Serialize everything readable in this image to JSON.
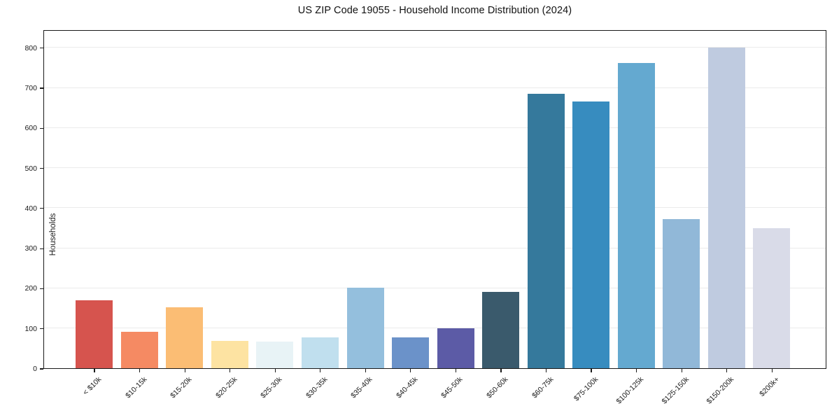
{
  "title": "US ZIP Code 19055 - Household Income Distribution (2024)",
  "chart_data": {
    "type": "bar",
    "title": "US ZIP Code 19055 - Household Income Distribution (2024)",
    "xlabel": "",
    "ylabel": "Households",
    "categories": [
      "< $10k",
      "$10-15k",
      "$15-20k",
      "$20-25k",
      "$25-30k",
      "$30-35k",
      "$35-40k",
      "$40-45k",
      "$45-50k",
      "$50-60k",
      "$60-75k",
      "$75-100k",
      "$100-125k",
      "$125-150k",
      "$150-200k",
      "$200k+"
    ],
    "values": [
      170,
      91,
      152,
      68,
      66,
      77,
      200,
      77,
      100,
      190,
      685,
      665,
      762,
      372,
      800,
      350
    ],
    "bar_colors": [
      "#d6544e",
      "#f58a63",
      "#fbbd74",
      "#fde3a2",
      "#e8f3f6",
      "#c0dfee",
      "#94bfdd",
      "#6b92c9",
      "#5c5ba6",
      "#3a5a6c",
      "#35799c",
      "#378cbf",
      "#64a9d0",
      "#91b8d8",
      "#bfcbe0",
      "#d9dbe8"
    ],
    "ylim": [
      0,
      845
    ],
    "yticks": [
      0,
      100,
      200,
      300,
      400,
      500,
      600,
      700,
      800
    ],
    "grid": true,
    "grid_color": "#ebebeb",
    "axis_color": "#1a1a1a",
    "legend_position": "none"
  }
}
